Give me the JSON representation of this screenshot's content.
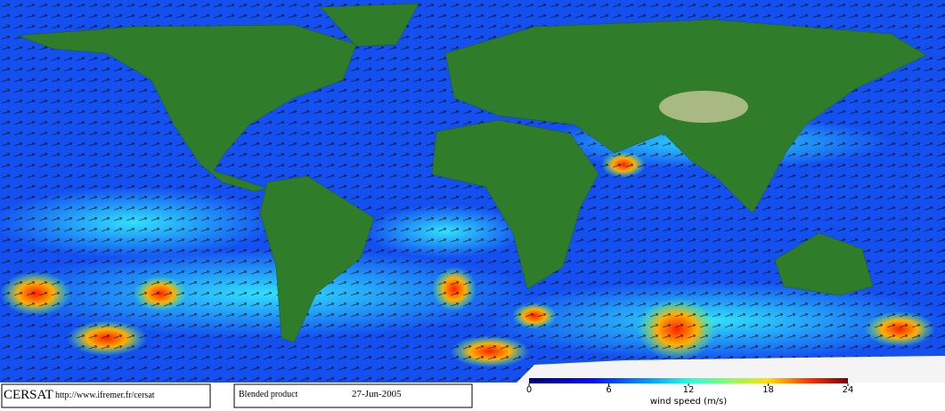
{
  "footer": {
    "logo": "CERSAT",
    "url": "http://www.ifremer.fr/cersat",
    "product": "Blended product",
    "date": "27-Jun-2005"
  },
  "colorbar": {
    "label": "wind speed (m/s)",
    "range": [
      0,
      24
    ],
    "ticks": [
      0,
      6,
      12,
      18,
      24
    ]
  }
}
